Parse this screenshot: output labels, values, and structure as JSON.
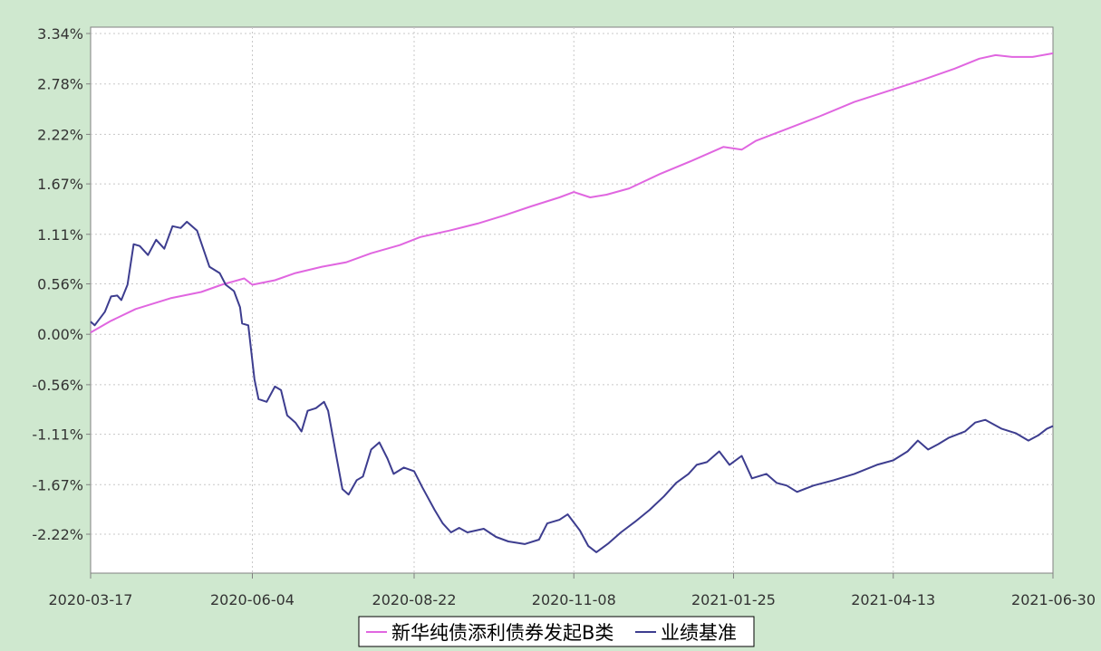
{
  "chart_data": {
    "type": "line",
    "title": "",
    "xlabel": "",
    "ylabel": "",
    "x_ticks": [
      "2020-03-17",
      "2020-06-04",
      "2020-08-22",
      "2020-11-08",
      "2021-01-25",
      "2021-04-13",
      "2021-06-30"
    ],
    "y_ticks": [
      "3.34%",
      "2.78%",
      "2.22%",
      "1.67%",
      "1.11%",
      "0.56%",
      "0.00%",
      "-0.56%",
      "-1.11%",
      "-1.67%",
      "-2.22%"
    ],
    "xlim": [
      "2020-03-17",
      "2021-06-30"
    ],
    "ylim": [
      -2.7,
      3.34
    ],
    "grid": true,
    "legend_position": "bottom-center",
    "series": [
      {
        "name": "新华纯债添利债券发起B类",
        "color": "#e066e0",
        "points": [
          [
            "2020-03-17",
            0.02
          ],
          [
            "2020-03-27",
            0.15
          ],
          [
            "2020-04-08",
            0.28
          ],
          [
            "2020-04-25",
            0.4
          ],
          [
            "2020-05-10",
            0.47
          ],
          [
            "2020-05-20",
            0.55
          ],
          [
            "2020-05-31",
            0.62
          ],
          [
            "2020-06-04",
            0.55
          ],
          [
            "2020-06-15",
            0.6
          ],
          [
            "2020-06-25",
            0.68
          ],
          [
            "2020-07-08",
            0.75
          ],
          [
            "2020-07-20",
            0.8
          ],
          [
            "2020-08-01",
            0.9
          ],
          [
            "2020-08-15",
            0.99
          ],
          [
            "2020-08-25",
            1.08
          ],
          [
            "2020-09-08",
            1.15
          ],
          [
            "2020-09-22",
            1.23
          ],
          [
            "2020-10-05",
            1.32
          ],
          [
            "2020-10-18",
            1.42
          ],
          [
            "2020-11-01",
            1.52
          ],
          [
            "2020-11-08",
            1.58
          ],
          [
            "2020-11-16",
            1.52
          ],
          [
            "2020-11-24",
            1.55
          ],
          [
            "2020-12-05",
            1.62
          ],
          [
            "2020-12-20",
            1.78
          ],
          [
            "2021-01-05",
            1.93
          ],
          [
            "2021-01-20",
            2.08
          ],
          [
            "2021-01-29",
            2.05
          ],
          [
            "2021-02-05",
            2.15
          ],
          [
            "2021-02-20",
            2.28
          ],
          [
            "2021-03-08",
            2.42
          ],
          [
            "2021-03-25",
            2.58
          ],
          [
            "2021-04-13",
            2.72
          ],
          [
            "2021-04-28",
            2.83
          ],
          [
            "2021-05-13",
            2.95
          ],
          [
            "2021-05-25",
            3.06
          ],
          [
            "2021-06-02",
            3.1
          ],
          [
            "2021-06-10",
            3.08
          ],
          [
            "2021-06-20",
            3.08
          ],
          [
            "2021-06-30",
            3.12
          ]
        ]
      },
      {
        "name": "业绩基准",
        "color": "#3d3d8f",
        "points": [
          [
            "2020-03-17",
            0.14
          ],
          [
            "2020-03-19",
            0.1
          ],
          [
            "2020-03-24",
            0.25
          ],
          [
            "2020-03-27",
            0.42
          ],
          [
            "2020-03-30",
            0.43
          ],
          [
            "2020-04-01",
            0.38
          ],
          [
            "2020-04-04",
            0.55
          ],
          [
            "2020-04-07",
            1.0
          ],
          [
            "2020-04-10",
            0.98
          ],
          [
            "2020-04-14",
            0.88
          ],
          [
            "2020-04-18",
            1.05
          ],
          [
            "2020-04-22",
            0.95
          ],
          [
            "2020-04-26",
            1.2
          ],
          [
            "2020-04-30",
            1.18
          ],
          [
            "2020-05-03",
            1.25
          ],
          [
            "2020-05-08",
            1.15
          ],
          [
            "2020-05-11",
            0.95
          ],
          [
            "2020-05-14",
            0.75
          ],
          [
            "2020-05-19",
            0.68
          ],
          [
            "2020-05-22",
            0.55
          ],
          [
            "2020-05-26",
            0.48
          ],
          [
            "2020-05-29",
            0.3
          ],
          [
            "2020-05-30",
            0.12
          ],
          [
            "2020-06-02",
            0.1
          ],
          [
            "2020-06-05",
            -0.5
          ],
          [
            "2020-06-07",
            -0.72
          ],
          [
            "2020-06-11",
            -0.75
          ],
          [
            "2020-06-15",
            -0.58
          ],
          [
            "2020-06-18",
            -0.62
          ],
          [
            "2020-06-21",
            -0.9
          ],
          [
            "2020-06-25",
            -0.98
          ],
          [
            "2020-06-28",
            -1.08
          ],
          [
            "2020-07-01",
            -0.85
          ],
          [
            "2020-07-05",
            -0.82
          ],
          [
            "2020-07-09",
            -0.75
          ],
          [
            "2020-07-11",
            -0.85
          ],
          [
            "2020-07-15",
            -1.35
          ],
          [
            "2020-07-18",
            -1.72
          ],
          [
            "2020-07-21",
            -1.78
          ],
          [
            "2020-07-25",
            -1.62
          ],
          [
            "2020-07-28",
            -1.58
          ],
          [
            "2020-08-01",
            -1.28
          ],
          [
            "2020-08-05",
            -1.2
          ],
          [
            "2020-08-09",
            -1.38
          ],
          [
            "2020-08-12",
            -1.55
          ],
          [
            "2020-08-17",
            -1.48
          ],
          [
            "2020-08-22",
            -1.52
          ],
          [
            "2020-08-26",
            -1.7
          ],
          [
            "2020-09-01",
            -1.95
          ],
          [
            "2020-09-05",
            -2.1
          ],
          [
            "2020-09-09",
            -2.2
          ],
          [
            "2020-09-13",
            -2.15
          ],
          [
            "2020-09-17",
            -2.2
          ],
          [
            "2020-09-25",
            -2.16
          ],
          [
            "2020-10-01",
            -2.25
          ],
          [
            "2020-10-07",
            -2.3
          ],
          [
            "2020-10-15",
            -2.33
          ],
          [
            "2020-10-22",
            -2.28
          ],
          [
            "2020-10-26",
            -2.1
          ],
          [
            "2020-11-01",
            -2.06
          ],
          [
            "2020-11-05",
            -2.0
          ],
          [
            "2020-11-11",
            -2.18
          ],
          [
            "2020-11-15",
            -2.35
          ],
          [
            "2020-11-19",
            -2.42
          ],
          [
            "2020-11-25",
            -2.32
          ],
          [
            "2020-12-01",
            -2.2
          ],
          [
            "2020-12-08",
            -2.08
          ],
          [
            "2020-12-15",
            -1.95
          ],
          [
            "2020-12-22",
            -1.8
          ],
          [
            "2020-12-28",
            -1.65
          ],
          [
            "2021-01-03",
            -1.55
          ],
          [
            "2021-01-07",
            -1.45
          ],
          [
            "2021-01-12",
            -1.42
          ],
          [
            "2021-01-18",
            -1.3
          ],
          [
            "2021-01-23",
            -1.45
          ],
          [
            "2021-01-29",
            -1.35
          ],
          [
            "2021-02-03",
            -1.6
          ],
          [
            "2021-02-10",
            -1.55
          ],
          [
            "2021-02-15",
            -1.65
          ],
          [
            "2021-02-20",
            -1.68
          ],
          [
            "2021-02-25",
            -1.75
          ],
          [
            "2021-03-05",
            -1.68
          ],
          [
            "2021-03-15",
            -1.62
          ],
          [
            "2021-03-25",
            -1.55
          ],
          [
            "2021-04-05",
            -1.45
          ],
          [
            "2021-04-13",
            -1.4
          ],
          [
            "2021-04-20",
            -1.3
          ],
          [
            "2021-04-25",
            -1.18
          ],
          [
            "2021-04-30",
            -1.28
          ],
          [
            "2021-05-05",
            -1.22
          ],
          [
            "2021-05-10",
            -1.15
          ],
          [
            "2021-05-18",
            -1.08
          ],
          [
            "2021-05-23",
            -0.98
          ],
          [
            "2021-05-28",
            -0.95
          ],
          [
            "2021-06-05",
            -1.05
          ],
          [
            "2021-06-12",
            -1.1
          ],
          [
            "2021-06-18",
            -1.18
          ],
          [
            "2021-06-23",
            -1.12
          ],
          [
            "2021-06-27",
            -1.05
          ],
          [
            "2021-06-30",
            -1.02
          ]
        ]
      }
    ]
  }
}
